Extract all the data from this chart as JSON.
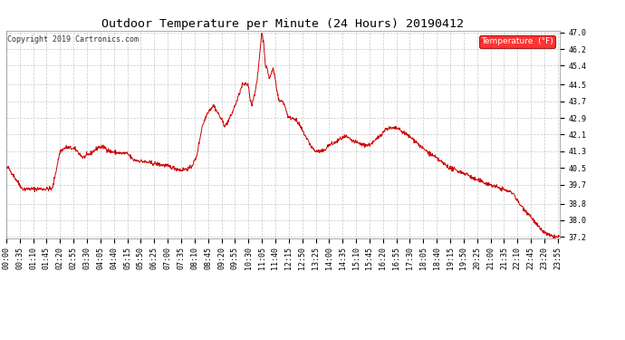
{
  "title": "Outdoor Temperature per Minute (24 Hours) 20190412",
  "copyright": "Copyright 2019 Cartronics.com",
  "legend_label": "Temperature  (°F)",
  "line_color": "#cc0000",
  "background_color": "#ffffff",
  "grid_color": "#bbbbbb",
  "ylim": [
    37.2,
    47.0
  ],
  "yticks": [
    37.2,
    38.0,
    38.8,
    39.7,
    40.5,
    41.3,
    42.1,
    42.9,
    43.7,
    44.5,
    45.4,
    46.2,
    47.0
  ],
  "title_fontsize": 9.5,
  "axis_fontsize": 6.0,
  "copyright_fontsize": 6.0,
  "legend_fontsize": 6.5
}
